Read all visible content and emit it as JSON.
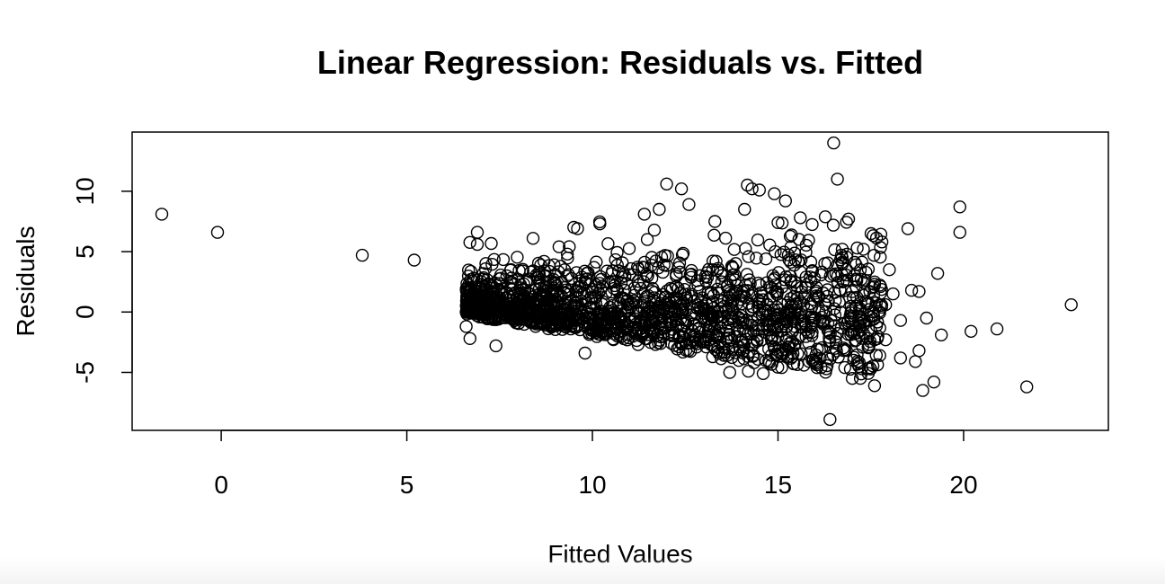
{
  "chart_data": {
    "type": "scatter",
    "title": "Linear Regression: Residuals vs. Fitted",
    "xlabel": "Fitted Values",
    "ylabel": "Residuals",
    "xlim": [
      -2.4,
      23.9
    ],
    "ylim": [
      -9.8,
      14.9
    ],
    "x_ticks": [
      0,
      5,
      10,
      15,
      20
    ],
    "y_ticks": [
      -5,
      0,
      5,
      10
    ],
    "grid": false,
    "legend": "none",
    "outliers": [
      {
        "x": -1.6,
        "y": 8.1
      },
      {
        "x": -0.1,
        "y": 6.6
      },
      {
        "x": 3.8,
        "y": 4.7
      },
      {
        "x": 5.2,
        "y": 4.3
      },
      {
        "x": 6.9,
        "y": 6.6
      },
      {
        "x": 6.9,
        "y": 5.6
      },
      {
        "x": 8.4,
        "y": 6.1
      },
      {
        "x": 9.1,
        "y": 5.4
      },
      {
        "x": 9.6,
        "y": 6.9
      },
      {
        "x": 10.2,
        "y": 7.3
      },
      {
        "x": 12.0,
        "y": 10.6
      },
      {
        "x": 12.4,
        "y": 10.2
      },
      {
        "x": 14.3,
        "y": 10.2
      },
      {
        "x": 14.5,
        "y": 10.1
      },
      {
        "x": 14.9,
        "y": 9.8
      },
      {
        "x": 15.2,
        "y": 9.2
      },
      {
        "x": 16.5,
        "y": 14.0
      },
      {
        "x": 16.6,
        "y": 11.0
      },
      {
        "x": 16.4,
        "y": -8.9
      },
      {
        "x": 16.9,
        "y": 7.7
      },
      {
        "x": 17.3,
        "y": 5.2
      },
      {
        "x": 17.8,
        "y": 5.8
      },
      {
        "x": 18.0,
        "y": 3.5
      },
      {
        "x": 18.5,
        "y": 6.9
      },
      {
        "x": 18.6,
        "y": 1.8
      },
      {
        "x": 18.8,
        "y": 1.7
      },
      {
        "x": 19.0,
        "y": -0.5
      },
      {
        "x": 19.3,
        "y": 3.2
      },
      {
        "x": 19.4,
        "y": -1.9
      },
      {
        "x": 19.9,
        "y": 8.7
      },
      {
        "x": 19.9,
        "y": 6.6
      },
      {
        "x": 20.2,
        "y": -1.6
      },
      {
        "x": 20.9,
        "y": -1.4
      },
      {
        "x": 21.7,
        "y": -6.2
      },
      {
        "x": 22.9,
        "y": 0.6
      },
      {
        "x": 18.9,
        "y": -6.5
      },
      {
        "x": 19.2,
        "y": -5.8
      },
      {
        "x": 18.7,
        "y": -4.1
      },
      {
        "x": 18.8,
        "y": -3.2
      },
      {
        "x": 18.3,
        "y": -3.8
      },
      {
        "x": 17.6,
        "y": -6.1
      },
      {
        "x": 17.0,
        "y": -5.5
      },
      {
        "x": 16.8,
        "y": -4.6
      },
      {
        "x": 18.1,
        "y": 1.5
      },
      {
        "x": 17.9,
        "y": 0.6
      },
      {
        "x": 18.3,
        "y": -0.7
      },
      {
        "x": 17.6,
        "y": -2.3
      },
      {
        "x": 17.9,
        "y": -2.3
      },
      {
        "x": 16.4,
        "y": -3.9
      },
      {
        "x": 16.3,
        "y": -4.7
      },
      {
        "x": 15.7,
        "y": -4.4
      },
      {
        "x": 15.1,
        "y": -4.6
      },
      {
        "x": 14.6,
        "y": -5.1
      },
      {
        "x": 14.2,
        "y": -4.9
      },
      {
        "x": 13.7,
        "y": -5.0
      },
      {
        "x": 9.8,
        "y": -3.4
      },
      {
        "x": 7.4,
        "y": -2.8
      },
      {
        "x": 6.7,
        "y": -2.2
      },
      {
        "x": 6.6,
        "y": -1.2
      },
      {
        "x": 6.6,
        "y": 0.0
      },
      {
        "x": 8.0,
        "y": 2.7
      },
      {
        "x": 11.4,
        "y": 8.1
      },
      {
        "x": 11.8,
        "y": 8.5
      },
      {
        "x": 12.6,
        "y": 8.9
      },
      {
        "x": 13.3,
        "y": 7.5
      },
      {
        "x": 14.1,
        "y": 8.5
      },
      {
        "x": 15.6,
        "y": 7.8
      },
      {
        "x": 15.0,
        "y": 7.4
      },
      {
        "x": 16.6,
        "y": 3.9
      },
      {
        "x": 17.2,
        "y": 0.3
      }
    ],
    "main_cloud": {
      "x_range": [
        6.6,
        17.8
      ],
      "residual_spread_sd": 2.2,
      "n_points": 1700
    }
  }
}
